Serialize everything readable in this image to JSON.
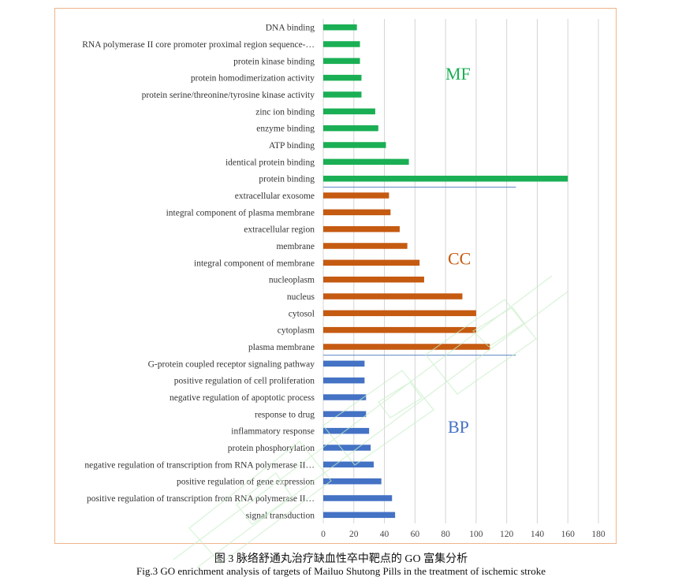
{
  "chart_data": {
    "type": "bar",
    "orientation": "horizontal",
    "x_ticks": [
      "0",
      "20",
      "40",
      "60",
      "80",
      "100",
      "120",
      "140",
      "160",
      "180"
    ],
    "xlim": [
      0,
      180
    ],
    "grid": true,
    "groups": [
      {
        "name": "MF",
        "color": "#1aaf54",
        "categories": [
          "DNA binding",
          "RNA polymerase II core promoter proximal region sequence-…",
          "protein kinase binding",
          "protein homodimerization activity",
          "protein serine/threonine/tyrosine kinase activity",
          "zinc ion binding",
          "enzyme binding",
          "ATP binding",
          "identical protein binding",
          "protein binding"
        ],
        "values": [
          22,
          24,
          24,
          25,
          25,
          34,
          36,
          41,
          56,
          160
        ]
      },
      {
        "name": "CC",
        "color": "#c55a11",
        "categories": [
          "extracellular exosome",
          "integral component of plasma membrane",
          "extracellular region",
          "membrane",
          "integral component of membrane",
          "nucleoplasm",
          "nucleus",
          "cytosol",
          "cytoplasm",
          "plasma membrane"
        ],
        "values": [
          43,
          44,
          50,
          55,
          63,
          66,
          91,
          100,
          100,
          109
        ]
      },
      {
        "name": "BP",
        "color": "#4472c4",
        "categories": [
          "G-protein coupled receptor signaling pathway",
          "positive regulation of cell proliferation",
          "negative regulation of apoptotic process",
          "response to drug",
          "inflammatory response",
          "protein phosphorylation",
          "negative regulation of transcription from RNA polymerase II…",
          "positive regulation of gene expression",
          "positive regulation of transcription from RNA polymerase II…",
          "signal transduction"
        ],
        "values": [
          27,
          27,
          28,
          28,
          30,
          31,
          33,
          38,
          45,
          47
        ]
      }
    ]
  },
  "caption": {
    "chinese": "图 3  脉络舒通丸治疗缺血性卒中靶点的 GO 富集分析",
    "english": "Fig.3 GO enrichment analysis of targets of Mailuo Shutong Pills in the treatment of ischemic stroke"
  }
}
